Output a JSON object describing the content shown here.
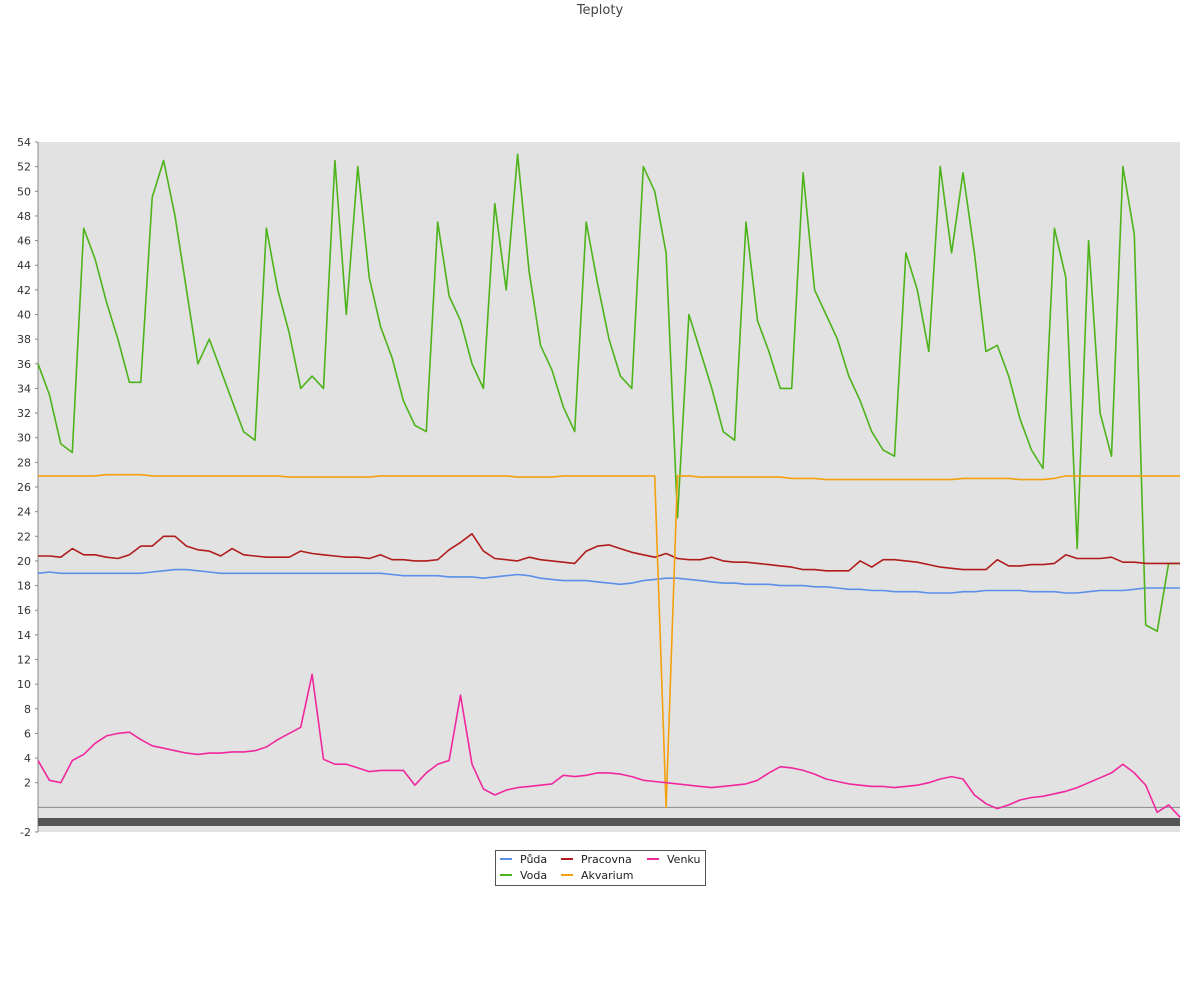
{
  "chart_data": {
    "type": "line",
    "title": "Teploty",
    "xlabel": "",
    "ylabel": "",
    "ylim": [
      -2,
      54
    ],
    "yticks": [
      -2,
      2,
      4,
      6,
      8,
      10,
      12,
      14,
      16,
      18,
      20,
      22,
      24,
      26,
      28,
      30,
      32,
      34,
      36,
      38,
      40,
      42,
      44,
      46,
      48,
      50,
      52,
      54
    ],
    "x_points": 101,
    "grid": false,
    "legend_position": "bottom",
    "series": [
      {
        "name": "Půda",
        "color": "#5b8fe8",
        "values": [
          19,
          19.1,
          19,
          19,
          19,
          19,
          19,
          19,
          19,
          19,
          19.1,
          19.2,
          19.3,
          19.3,
          19.2,
          19.1,
          19,
          19,
          19,
          19,
          19,
          19,
          19,
          19,
          19,
          19,
          19,
          19,
          19,
          19,
          19,
          18.9,
          18.8,
          18.8,
          18.8,
          18.8,
          18.7,
          18.7,
          18.7,
          18.6,
          18.7,
          18.8,
          18.9,
          18.8,
          18.6,
          18.5,
          18.4,
          18.4,
          18.4,
          18.3,
          18.2,
          18.1,
          18.2,
          18.4,
          18.5,
          18.6,
          18.6,
          18.5,
          18.4,
          18.3,
          18.2,
          18.2,
          18.1,
          18.1,
          18.1,
          18,
          18,
          18,
          17.9,
          17.9,
          17.8,
          17.7,
          17.7,
          17.6,
          17.6,
          17.5,
          17.5,
          17.5,
          17.4,
          17.4,
          17.4,
          17.5,
          17.5,
          17.6,
          17.6,
          17.6,
          17.6,
          17.5,
          17.5,
          17.5,
          17.4,
          17.4,
          17.5,
          17.6,
          17.6,
          17.6,
          17.7,
          17.8,
          17.8,
          17.8,
          17.8
        ]
      },
      {
        "name": "Voda",
        "color": "#4db31a",
        "values": [
          36,
          33.5,
          29.5,
          28.8,
          47,
          44.5,
          41,
          38,
          34.5,
          34.5,
          49.5,
          52.5,
          48,
          42,
          36,
          38,
          35.5,
          33,
          30.5,
          29.8,
          47,
          42,
          38.5,
          34,
          35,
          34,
          52.5,
          40,
          52,
          43,
          39,
          36.5,
          33,
          31,
          30.5,
          47.5,
          41.5,
          39.5,
          36,
          34,
          49,
          42,
          53,
          43.5,
          37.5,
          35.5,
          32.5,
          30.5,
          47.5,
          42.5,
          38,
          35,
          34,
          52,
          50,
          45,
          23.5,
          40,
          37,
          34,
          30.5,
          29.8,
          47.5,
          39.5,
          37,
          34,
          34,
          51.5,
          42,
          40,
          38,
          35,
          33,
          30.5,
          29,
          28.5,
          45,
          42,
          37,
          52,
          45,
          51.5,
          45,
          37,
          37.5,
          35,
          31.5,
          29,
          27.5,
          47,
          43,
          21,
          46,
          32,
          28.5,
          52,
          46.5,
          14.8,
          14.3,
          19.8,
          19.8
        ]
      },
      {
        "name": "Pracovna",
        "color": "#b01c1c",
        "values": [
          20.4,
          20.4,
          20.3,
          21,
          20.5,
          20.5,
          20.3,
          20.2,
          20.5,
          21.2,
          21.2,
          22,
          22,
          21.2,
          20.9,
          20.8,
          20.4,
          21,
          20.5,
          20.4,
          20.3,
          20.3,
          20.3,
          20.8,
          20.6,
          20.5,
          20.4,
          20.3,
          20.3,
          20.2,
          20.5,
          20.1,
          20.1,
          20,
          20,
          20.1,
          20.9,
          21.5,
          22.2,
          20.8,
          20.2,
          20.1,
          20,
          20.3,
          20.1,
          20,
          19.9,
          19.8,
          20.8,
          21.2,
          21.3,
          21,
          20.7,
          20.5,
          20.3,
          20.6,
          20.2,
          20.1,
          20.1,
          20.3,
          20,
          19.9,
          19.9,
          19.8,
          19.7,
          19.6,
          19.5,
          19.3,
          19.3,
          19.2,
          19.2,
          19.2,
          20,
          19.5,
          20.1,
          20.1,
          20,
          19.9,
          19.7,
          19.5,
          19.4,
          19.3,
          19.3,
          19.3,
          20.1,
          19.6,
          19.6,
          19.7,
          19.7,
          19.8,
          20.5,
          20.2,
          20.2,
          20.2,
          20.3,
          19.9,
          19.9,
          19.8,
          19.8,
          19.8,
          19.8
        ]
      },
      {
        "name": "Akvarium",
        "color": "#f5a00f",
        "values": [
          26.9,
          26.9,
          26.9,
          26.9,
          26.9,
          26.9,
          27,
          27,
          27,
          27,
          26.9,
          26.9,
          26.9,
          26.9,
          26.9,
          26.9,
          26.9,
          26.9,
          26.9,
          26.9,
          26.9,
          26.9,
          26.8,
          26.8,
          26.8,
          26.8,
          26.8,
          26.8,
          26.8,
          26.8,
          26.9,
          26.9,
          26.9,
          26.9,
          26.9,
          26.9,
          26.9,
          26.9,
          26.9,
          26.9,
          26.9,
          26.9,
          26.8,
          26.8,
          26.8,
          26.8,
          26.9,
          26.9,
          26.9,
          26.9,
          26.9,
          26.9,
          26.9,
          26.9,
          26.9,
          0,
          26.9,
          26.9,
          26.8,
          26.8,
          26.8,
          26.8,
          26.8,
          26.8,
          26.8,
          26.8,
          26.7,
          26.7,
          26.7,
          26.6,
          26.6,
          26.6,
          26.6,
          26.6,
          26.6,
          26.6,
          26.6,
          26.6,
          26.6,
          26.6,
          26.6,
          26.7,
          26.7,
          26.7,
          26.7,
          26.7,
          26.6,
          26.6,
          26.6,
          26.7,
          26.9,
          26.9,
          26.9,
          26.9,
          26.9,
          26.9,
          26.9,
          26.9,
          26.9,
          26.9,
          26.9
        ]
      },
      {
        "name": "Venku",
        "color": "#f0289e",
        "values": [
          3.8,
          2.2,
          2,
          3.8,
          4.3,
          5.2,
          5.8,
          6,
          6.1,
          5.5,
          5,
          4.8,
          4.6,
          4.4,
          4.3,
          4.4,
          4.4,
          4.5,
          4.5,
          4.6,
          4.9,
          5.5,
          6,
          6.5,
          10.8,
          3.9,
          3.5,
          3.5,
          3.2,
          2.9,
          3,
          3,
          3,
          1.8,
          2.8,
          3.5,
          3.8,
          9.1,
          3.5,
          1.5,
          1,
          1.4,
          1.6,
          1.7,
          1.8,
          1.9,
          2.6,
          2.5,
          2.6,
          2.8,
          2.8,
          2.7,
          2.5,
          2.2,
          2.1,
          2,
          1.9,
          1.8,
          1.7,
          1.6,
          1.7,
          1.8,
          1.9,
          2.2,
          2.8,
          3.3,
          3.2,
          3,
          2.7,
          2.3,
          2.1,
          1.9,
          1.8,
          1.7,
          1.7,
          1.6,
          1.7,
          1.8,
          2,
          2.3,
          2.5,
          2.3,
          1,
          0.3,
          -0.1,
          0.2,
          0.6,
          0.8,
          0.9,
          1.1,
          1.3,
          1.6,
          2,
          2.4,
          2.8,
          3.5,
          2.8,
          1.8,
          -0.4,
          0.2,
          -0.8
        ]
      }
    ]
  },
  "legend": {
    "items": [
      {
        "label": "Půda",
        "color": "#5b8fe8"
      },
      {
        "label": "Pracovna",
        "color": "#b01c1c"
      },
      {
        "label": "Venku",
        "color": "#f0289e"
      },
      {
        "label": "Voda",
        "color": "#4db31a"
      },
      {
        "label": "Akvarium",
        "color": "#f5a00f"
      }
    ]
  },
  "colors": {
    "plot_background": "#e2e2e2",
    "axis": "#888888",
    "tick_text": "#333333"
  }
}
